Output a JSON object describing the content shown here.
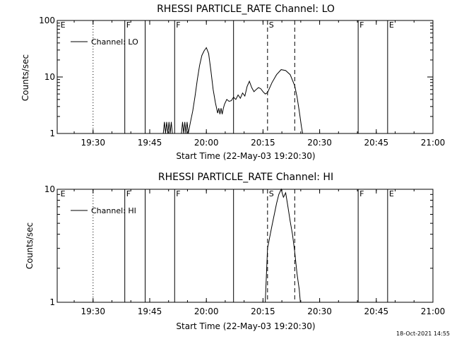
{
  "footer": {
    "timestamp": "18-Oct-2021 14:55"
  },
  "chart_data": [
    {
      "type": "line",
      "title": "RHESSI PARTICLE_RATE Channel: LO",
      "xlabel": "Start Time (22-May-03 19:20:30)",
      "ylabel": "Counts/sec",
      "legend": "Channel: LO",
      "legend_position": "top-left",
      "y_scale": "log",
      "ylim": [
        1,
        100
      ],
      "y_ticks": [
        {
          "v": 1,
          "label": "1"
        },
        {
          "v": 10,
          "label": "10"
        },
        {
          "v": 100,
          "label": "100"
        }
      ],
      "xlim": [
        19.3417,
        21.0
      ],
      "x_ticks": [
        {
          "v": 19.5,
          "label": "19:30"
        },
        {
          "v": 19.75,
          "label": "19:45"
        },
        {
          "v": 20.0,
          "label": "20:00"
        },
        {
          "v": 20.25,
          "label": "20:15"
        },
        {
          "v": 20.5,
          "label": "20:30"
        },
        {
          "v": 20.75,
          "label": "20:45"
        },
        {
          "v": 21.0,
          "label": "21:00"
        }
      ],
      "markers": [
        {
          "x": 19.35,
          "label": "E",
          "style": "none"
        },
        {
          "x": 19.5,
          "label": "",
          "style": "dotted"
        },
        {
          "x": 19.64,
          "label": "F",
          "style": "solid"
        },
        {
          "x": 19.73,
          "label": "",
          "style": "solid"
        },
        {
          "x": 19.86,
          "label": "F",
          "style": "solid"
        },
        {
          "x": 20.12,
          "label": "",
          "style": "solid"
        },
        {
          "x": 20.27,
          "label": "S",
          "style": "dashed"
        },
        {
          "x": 20.39,
          "label": "",
          "style": "dashed"
        },
        {
          "x": 20.67,
          "label": "F",
          "style": "solid"
        },
        {
          "x": 20.8,
          "label": "E",
          "style": "solid"
        },
        {
          "x": 21.0,
          "label": "",
          "style": "dotted"
        }
      ],
      "series": [
        {
          "name": "Channel: LO",
          "segments": [
            [
              [
                19.81,
                1.0
              ],
              [
                19.815,
                1.6
              ],
              [
                19.82,
                1.0
              ],
              [
                19.825,
                1.6
              ],
              [
                19.83,
                1.0
              ],
              [
                19.835,
                1.6
              ],
              [
                19.84,
                1.0
              ],
              [
                19.845,
                1.6
              ],
              [
                19.85,
                1.0
              ]
            ],
            [
              [
                19.89,
                1.0
              ],
              [
                19.895,
                1.6
              ],
              [
                19.9,
                1.0
              ],
              [
                19.905,
                1.6
              ],
              [
                19.91,
                1.0
              ],
              [
                19.915,
                1.6
              ],
              [
                19.92,
                1.0
              ]
            ],
            [
              [
                19.92,
                1.0
              ],
              [
                19.93,
                1.6
              ],
              [
                19.94,
                2.5
              ],
              [
                19.95,
                4.5
              ],
              [
                19.96,
                9
              ],
              [
                19.97,
                16
              ],
              [
                19.98,
                24
              ],
              [
                19.99,
                29
              ],
              [
                20.0,
                33
              ],
              [
                20.01,
                26
              ],
              [
                20.02,
                13
              ],
              [
                20.03,
                6
              ],
              [
                20.04,
                3.5
              ],
              [
                20.05,
                2.3
              ],
              [
                20.055,
                2.8
              ],
              [
                20.06,
                2.2
              ],
              [
                20.065,
                2.8
              ],
              [
                20.07,
                2.2
              ],
              [
                20.075,
                2.8
              ],
              [
                20.08,
                3.3
              ],
              [
                20.09,
                4.0
              ],
              [
                20.1,
                3.7
              ],
              [
                20.11,
                3.8
              ],
              [
                20.12,
                4.4
              ],
              [
                20.13,
                4.0
              ],
              [
                20.14,
                4.8
              ],
              [
                20.15,
                4.2
              ],
              [
                20.16,
                5.2
              ],
              [
                20.17,
                4.6
              ],
              [
                20.18,
                6.8
              ],
              [
                20.19,
                8.4
              ],
              [
                20.2,
                6.5
              ],
              [
                20.21,
                5.5
              ],
              [
                20.22,
                6.0
              ],
              [
                20.23,
                6.5
              ],
              [
                20.24,
                6.2
              ],
              [
                20.25,
                5.5
              ],
              [
                20.26,
                5.0
              ],
              [
                20.27,
                5.3
              ],
              [
                20.29,
                8.0
              ],
              [
                20.31,
                11
              ],
              [
                20.33,
                13.5
              ],
              [
                20.35,
                13.0
              ],
              [
                20.37,
                11
              ],
              [
                20.39,
                7.0
              ],
              [
                20.4,
                4.5
              ],
              [
                20.41,
                2.5
              ],
              [
                20.42,
                1.3
              ],
              [
                20.425,
                1.0
              ]
            ]
          ]
        }
      ]
    },
    {
      "type": "line",
      "title": "RHESSI PARTICLE_RATE Channel: HI",
      "xlabel": "Start Time (22-May-03 19:20:30)",
      "ylabel": "Counts/sec",
      "legend": "Channel: HI",
      "legend_position": "top-left",
      "y_scale": "log",
      "ylim": [
        1,
        10
      ],
      "y_ticks": [
        {
          "v": 1,
          "label": "1"
        },
        {
          "v": 10,
          "label": "10"
        }
      ],
      "xlim": [
        19.3417,
        21.0
      ],
      "x_ticks": [
        {
          "v": 19.5,
          "label": "19:30"
        },
        {
          "v": 19.75,
          "label": "19:45"
        },
        {
          "v": 20.0,
          "label": "20:00"
        },
        {
          "v": 20.25,
          "label": "20:15"
        },
        {
          "v": 20.5,
          "label": "20:30"
        },
        {
          "v": 20.75,
          "label": "20:45"
        },
        {
          "v": 21.0,
          "label": "21:00"
        }
      ],
      "markers": [
        {
          "x": 19.35,
          "label": "E",
          "style": "none"
        },
        {
          "x": 19.5,
          "label": "",
          "style": "dotted"
        },
        {
          "x": 19.64,
          "label": "F",
          "style": "solid"
        },
        {
          "x": 19.73,
          "label": "",
          "style": "solid"
        },
        {
          "x": 19.86,
          "label": "F",
          "style": "solid"
        },
        {
          "x": 20.12,
          "label": "",
          "style": "solid"
        },
        {
          "x": 20.27,
          "label": "S",
          "style": "dashed"
        },
        {
          "x": 20.39,
          "label": "",
          "style": "dashed"
        },
        {
          "x": 20.67,
          "label": "F",
          "style": "solid"
        },
        {
          "x": 20.8,
          "label": "E",
          "style": "solid"
        },
        {
          "x": 21.0,
          "label": "",
          "style": "dotted"
        }
      ],
      "series": [
        {
          "name": "Channel: HI",
          "segments": [
            [
              [
                20.26,
                1.0
              ],
              [
                20.27,
                3.0
              ],
              [
                20.28,
                3.8
              ],
              [
                20.29,
                4.8
              ],
              [
                20.3,
                6.0
              ],
              [
                20.31,
                7.5
              ],
              [
                20.32,
                9.0
              ],
              [
                20.33,
                10.0
              ],
              [
                20.34,
                8.5
              ],
              [
                20.35,
                9.3
              ],
              [
                20.36,
                7.0
              ],
              [
                20.37,
                5.2
              ],
              [
                20.38,
                4.0
              ],
              [
                20.39,
                2.8
              ],
              [
                20.4,
                1.8
              ],
              [
                20.41,
                1.3
              ],
              [
                20.415,
                1.0
              ]
            ]
          ]
        }
      ]
    }
  ]
}
